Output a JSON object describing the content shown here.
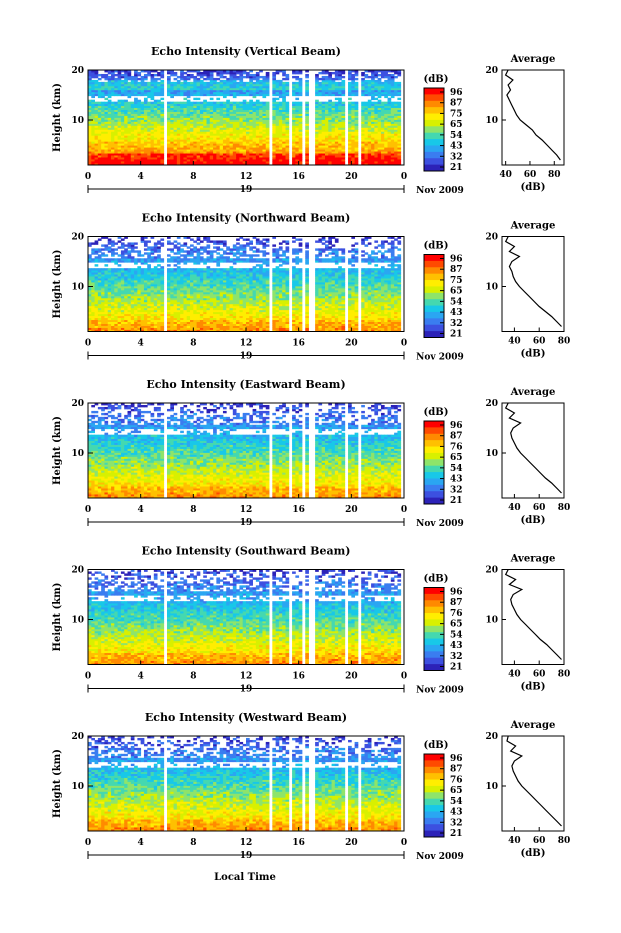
{
  "figure": {
    "xlabel": "Local Time"
  },
  "colorbar": {
    "unit": "(dB)",
    "ticks": [
      "96",
      "87",
      "75",
      "65",
      "54",
      "43",
      "32",
      "21"
    ],
    "alt_ticks": [
      "96",
      "87",
      "76",
      "65",
      "54",
      "43",
      "32",
      "21"
    ],
    "colors": [
      "#ff0000",
      "#ff4a00",
      "#ff8a00",
      "#ffc000",
      "#ffee00",
      "#d8f000",
      "#8ee46a",
      "#44d8b0",
      "#18c8e8",
      "#2aa6f2",
      "#3a7df0",
      "#3c50e0",
      "#2c22b8"
    ]
  },
  "chart_data": [
    {
      "type": "heatmap",
      "title": "Echo Intensity (Vertical Beam)",
      "ylabel": "Height (km)",
      "x_ticks": [
        "0",
        "4",
        "8",
        "12",
        "16",
        "20",
        "0"
      ],
      "y_ticks": [
        "20",
        "10"
      ],
      "xlim": [
        0,
        24
      ],
      "ylim": [
        1,
        20
      ],
      "date_day": "19",
      "date_label": "Nov 2009",
      "gaps_hours": [
        5.8,
        13.9,
        15.4,
        16.4,
        16.9,
        17.0,
        19.7,
        20.6,
        23.8
      ],
      "colorbar_ticks_key": "ticks",
      "average": {
        "title": "Average",
        "xlabel": "(dB)",
        "x_ticks": [
          "40",
          "60",
          "80"
        ],
        "xlim": [
          37,
          88
        ],
        "height_km": [
          2,
          3,
          4,
          5,
          6,
          7,
          8,
          9,
          10,
          11,
          12,
          13,
          14,
          15,
          16,
          17,
          18,
          19,
          20
        ],
        "intensity_db": [
          85,
          82,
          78,
          74,
          70,
          65,
          62,
          57,
          52,
          49,
          47,
          45,
          43,
          41,
          44,
          42,
          46,
          40,
          42
        ]
      }
    },
    {
      "type": "heatmap",
      "title": "Echo Intensity (Northward Beam)",
      "ylabel": "Height (km)",
      "x_ticks": [
        "0",
        "4",
        "8",
        "12",
        "16",
        "20",
        "0"
      ],
      "y_ticks": [
        "20",
        "10"
      ],
      "xlim": [
        0,
        24
      ],
      "ylim": [
        1,
        20
      ],
      "date_day": "19",
      "date_label": "Nov 2009",
      "gaps_hours": [
        5.8,
        13.9,
        15.4,
        16.4,
        16.9,
        17.0,
        19.7,
        20.6,
        23.8
      ],
      "colorbar_ticks_key": "ticks",
      "average": {
        "title": "Average",
        "xlabel": "(dB)",
        "x_ticks": [
          "40",
          "60",
          "80"
        ],
        "xlim": [
          30,
          80
        ],
        "height_km": [
          2,
          3,
          4,
          5,
          6,
          7,
          8,
          9,
          10,
          11,
          12,
          13,
          14,
          15,
          16,
          17,
          18,
          19,
          20
        ],
        "intensity_db": [
          78,
          74,
          70,
          65,
          60,
          56,
          52,
          48,
          44,
          41,
          39,
          38,
          36,
          38,
          44,
          36,
          40,
          33,
          35
        ]
      }
    },
    {
      "type": "heatmap",
      "title": "Echo Intensity (Eastward Beam)",
      "ylabel": "Height (km)",
      "x_ticks": [
        "0",
        "4",
        "8",
        "12",
        "16",
        "20",
        "0"
      ],
      "y_ticks": [
        "20",
        "10"
      ],
      "xlim": [
        0,
        24
      ],
      "ylim": [
        1,
        20
      ],
      "date_day": "19",
      "date_label": "Nov 2009",
      "gaps_hours": [
        5.8,
        13.9,
        15.4,
        16.4,
        16.9,
        17.0,
        19.7,
        20.6,
        23.8
      ],
      "colorbar_ticks_key": "alt_ticks",
      "average": {
        "title": "Average",
        "xlabel": "(dB)",
        "x_ticks": [
          "40",
          "60",
          "80"
        ],
        "xlim": [
          30,
          80
        ],
        "height_km": [
          2,
          3,
          4,
          5,
          6,
          7,
          8,
          9,
          10,
          11,
          12,
          13,
          14,
          15,
          16,
          17,
          18,
          19,
          20
        ],
        "intensity_db": [
          78,
          74,
          70,
          65,
          61,
          57,
          53,
          49,
          45,
          42,
          40,
          38,
          37,
          39,
          45,
          36,
          40,
          33,
          35
        ]
      }
    },
    {
      "type": "heatmap",
      "title": "Echo Intensity (Southward Beam)",
      "ylabel": "Height (km)",
      "x_ticks": [
        "0",
        "4",
        "8",
        "12",
        "16",
        "20",
        "0"
      ],
      "y_ticks": [
        "20",
        "10"
      ],
      "xlim": [
        0,
        24
      ],
      "ylim": [
        1,
        20
      ],
      "date_day": "19",
      "date_label": "Nov 2009",
      "gaps_hours": [
        5.8,
        13.9,
        15.4,
        16.4,
        16.9,
        17.0,
        19.7,
        20.6,
        23.8
      ],
      "colorbar_ticks_key": "alt_ticks",
      "average": {
        "title": "Average",
        "xlabel": "(dB)",
        "x_ticks": [
          "40",
          "60",
          "80"
        ],
        "xlim": [
          30,
          80
        ],
        "height_km": [
          2,
          3,
          4,
          5,
          6,
          7,
          8,
          9,
          10,
          11,
          12,
          13,
          14,
          15,
          16,
          17,
          18,
          19,
          20
        ],
        "intensity_db": [
          78,
          74,
          70,
          66,
          61,
          57,
          53,
          49,
          45,
          42,
          40,
          38,
          37,
          39,
          46,
          36,
          41,
          33,
          35
        ]
      }
    },
    {
      "type": "heatmap",
      "title": "Echo Intensity (Westward Beam)",
      "ylabel": "Height (km)",
      "x_ticks": [
        "0",
        "4",
        "8",
        "12",
        "16",
        "20",
        "0"
      ],
      "y_ticks": [
        "20",
        "10"
      ],
      "xlim": [
        0,
        24
      ],
      "ylim": [
        1,
        20
      ],
      "date_day": "19",
      "date_label": "Nov 2009",
      "gaps_hours": [
        5.8,
        13.9,
        15.4,
        16.4,
        16.9,
        17.0,
        19.7,
        20.6,
        23.8
      ],
      "colorbar_ticks_key": "alt_ticks",
      "average": {
        "title": "Average",
        "xlabel": "(dB)",
        "x_ticks": [
          "40",
          "60",
          "80"
        ],
        "xlim": [
          30,
          80
        ],
        "height_km": [
          2,
          3,
          4,
          5,
          6,
          7,
          8,
          9,
          10,
          11,
          12,
          13,
          14,
          15,
          16,
          17,
          18,
          19,
          20
        ],
        "intensity_db": [
          78,
          74,
          70,
          66,
          62,
          58,
          54,
          50,
          46,
          43,
          41,
          39,
          38,
          40,
          46,
          37,
          41,
          34,
          35
        ]
      }
    }
  ]
}
